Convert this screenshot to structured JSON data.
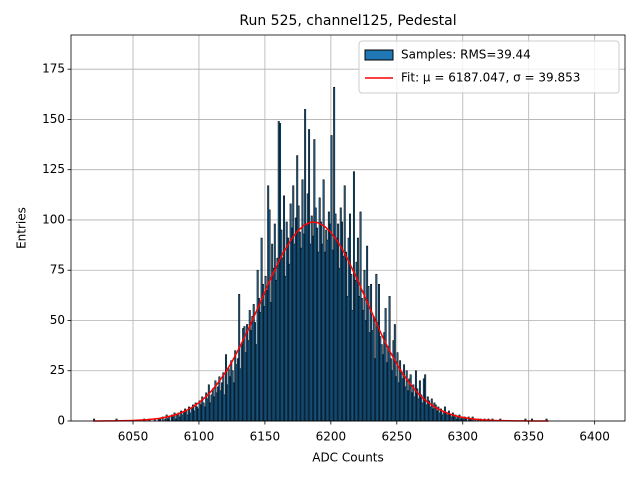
{
  "chart_data": {
    "type": "histogram",
    "title": "Run 525, channel125, Pedestal",
    "xlabel": "ADC Counts",
    "ylabel": "Entries",
    "xlim": [
      6003,
      6423
    ],
    "xticks": [
      6050,
      6100,
      6150,
      6200,
      6250,
      6300,
      6350,
      6400
    ],
    "ylim": [
      0,
      192
    ],
    "yticks": [
      0,
      25,
      50,
      75,
      100,
      125,
      150,
      175
    ],
    "grid": true,
    "legend": "upper right",
    "series": [
      {
        "name": "Samples: RMS=39.44",
        "type": "histogram",
        "color": "#1f77b4",
        "edgecolor": "#000000",
        "bins": [
          6020,
          6021,
          6022,
          6023,
          6024,
          6025,
          6026,
          6027,
          6028,
          6029,
          6030,
          6031,
          6032,
          6033,
          6034,
          6035,
          6036,
          6037,
          6038,
          6039,
          6040,
          6041,
          6042,
          6043,
          6044,
          6045,
          6046,
          6047,
          6048,
          6049,
          6050,
          6051,
          6052,
          6053,
          6054,
          6055,
          6056,
          6057,
          6058,
          6059,
          6060,
          6061,
          6062,
          6063,
          6064,
          6065,
          6066,
          6067,
          6068,
          6069,
          6070,
          6071,
          6072,
          6073,
          6074,
          6075,
          6076,
          6077,
          6078,
          6079,
          6080,
          6081,
          6082,
          6083,
          6084,
          6085,
          6086,
          6087,
          6088,
          6089,
          6090,
          6091,
          6092,
          6093,
          6094,
          6095,
          6096,
          6097,
          6098,
          6099,
          6100,
          6101,
          6102,
          6103,
          6104,
          6105,
          6106,
          6107,
          6108,
          6109,
          6110,
          6111,
          6112,
          6113,
          6114,
          6115,
          6116,
          6117,
          6118,
          6119,
          6120,
          6121,
          6122,
          6123,
          6124,
          6125,
          6126,
          6127,
          6128,
          6129,
          6130,
          6131,
          6132,
          6133,
          6134,
          6135,
          6136,
          6137,
          6138,
          6139,
          6140,
          6141,
          6142,
          6143,
          6144,
          6145,
          6146,
          6147,
          6148,
          6149,
          6150,
          6151,
          6152,
          6153,
          6154,
          6155,
          6156,
          6157,
          6158,
          6159,
          6160,
          6161,
          6162,
          6163,
          6164,
          6165,
          6166,
          6167,
          6168,
          6169,
          6170,
          6171,
          6172,
          6173,
          6174,
          6175,
          6176,
          6177,
          6178,
          6179,
          6180,
          6181,
          6182,
          6183,
          6184,
          6185,
          6186,
          6187,
          6188,
          6189,
          6190,
          6191,
          6192,
          6193,
          6194,
          6195,
          6196,
          6197,
          6198,
          6199,
          6200,
          6201,
          6202,
          6203,
          6204,
          6205,
          6206,
          6207,
          6208,
          6209,
          6210,
          6211,
          6212,
          6213,
          6214,
          6215,
          6216,
          6217,
          6218,
          6219,
          6220,
          6221,
          6222,
          6223,
          6224,
          6225,
          6226,
          6227,
          6228,
          6229,
          6230,
          6231,
          6232,
          6233,
          6234,
          6235,
          6236,
          6237,
          6238,
          6239,
          6240,
          6241,
          6242,
          6243,
          6244,
          6245,
          6246,
          6247,
          6248,
          6249,
          6250,
          6251,
          6252,
          6253,
          6254,
          6255,
          6256,
          6257,
          6258,
          6259,
          6260,
          6261,
          6262,
          6263,
          6264,
          6265,
          6266,
          6267,
          6268,
          6269,
          6270,
          6271,
          6272,
          6273,
          6274,
          6275,
          6276,
          6277,
          6278,
          6279,
          6280,
          6281,
          6282,
          6283,
          6284,
          6285,
          6286,
          6287,
          6288,
          6289,
          6290,
          6291,
          6292,
          6293,
          6294,
          6295,
          6296,
          6297,
          6298,
          6299,
          6300,
          6301,
          6302,
          6303,
          6304,
          6305,
          6306,
          6307,
          6308,
          6309,
          6310,
          6311,
          6312,
          6313,
          6314,
          6315,
          6316,
          6317,
          6318,
          6319,
          6320,
          6321,
          6322,
          6323,
          6324,
          6325,
          6326,
          6327,
          6328,
          6329,
          6330,
          6331,
          6332,
          6333,
          6334,
          6335,
          6336,
          6337,
          6338,
          6339,
          6340,
          6341,
          6342,
          6343,
          6344,
          6345,
          6346,
          6347,
          6348,
          6349,
          6350,
          6351,
          6352,
          6353,
          6354,
          6355,
          6356,
          6357,
          6358,
          6359,
          6360,
          6361,
          6362,
          6363,
          6364,
          6365
        ],
        "values": [
          1,
          0,
          0,
          0,
          0,
          0,
          0,
          0,
          0,
          0,
          0,
          0,
          0,
          0,
          0,
          0,
          0,
          1,
          0,
          0,
          0,
          0,
          0,
          0,
          0,
          0,
          0,
          0,
          0,
          0,
          0,
          0,
          0,
          0,
          0,
          0,
          0,
          0,
          1,
          0,
          0,
          0,
          1,
          0,
          0,
          0,
          1,
          0,
          0,
          1,
          1,
          0,
          2,
          0,
          1,
          3,
          1,
          2,
          0,
          3,
          2,
          4,
          1,
          3,
          4,
          2,
          5,
          3,
          4,
          6,
          5,
          3,
          7,
          4,
          6,
          8,
          5,
          9,
          7,
          6,
          10,
          8,
          12,
          9,
          7,
          14,
          11,
          18,
          9,
          13,
          16,
          12,
          20,
          14,
          17,
          22,
          15,
          19,
          24,
          13,
          33,
          18,
          26,
          22,
          30,
          25,
          19,
          35,
          28,
          31,
          63,
          26,
          38,
          46,
          47,
          34,
          48,
          40,
          55,
          45,
          52,
          58,
          49,
          38,
          75,
          61,
          54,
          91,
          68,
          57,
          72,
          65,
          117,
          105,
          59,
          88,
          76,
          98,
          70,
          81,
          149,
          148,
          95,
          81,
          112,
          72,
          99,
          91,
          78,
          108,
          96,
          117,
          88,
          101,
          132,
          107,
          94,
          86,
          120,
          93,
          155,
          98,
          113,
          145,
          88,
          102,
          92,
          140,
          106,
          96,
          84,
          111,
          99,
          88,
          120,
          84,
          95,
          90,
          104,
          98,
          142,
          85,
          166,
          103,
          91,
          98,
          76,
          106,
          99,
          82,
          117,
          84,
          62,
          91,
          103,
          73,
          55,
          124,
          70,
          79,
          91,
          62,
          104,
          61,
          55,
          75,
          50,
          87,
          67,
          44,
          68,
          45,
          52,
          31,
          73,
          49,
          68,
          42,
          38,
          33,
          44,
          56,
          29,
          37,
          62,
          31,
          25,
          40,
          48,
          22,
          34,
          19,
          30,
          24,
          21,
          28,
          17,
          25,
          15,
          21,
          23,
          14,
          18,
          12,
          25,
          16,
          11,
          20,
          13,
          9,
          21,
          23,
          8,
          12,
          10,
          7,
          11,
          6,
          9,
          8,
          5,
          7,
          4,
          6,
          3,
          5,
          7,
          4,
          3,
          5,
          3,
          2,
          4,
          2,
          3,
          1,
          2,
          3,
          1,
          2,
          1,
          2,
          1,
          0,
          2,
          1,
          1,
          2,
          0,
          1,
          0,
          1,
          0,
          1,
          0,
          0,
          1,
          0,
          0,
          1,
          0,
          0,
          1,
          0,
          0,
          0,
          0,
          0,
          1,
          0,
          0,
          0,
          0,
          0,
          0,
          0,
          0,
          0,
          0,
          0,
          0,
          0,
          0,
          0,
          0,
          0,
          0,
          1,
          0,
          0,
          0,
          0,
          1,
          0,
          0,
          0,
          0,
          0,
          0,
          0,
          0,
          0,
          0,
          1,
          0
        ]
      },
      {
        "name": "Fit: μ = 6187.047, σ = 39.853",
        "type": "line",
        "color": "#ff0000",
        "x": [
          6020,
          6025,
          6030,
          6035,
          6040,
          6045,
          6050,
          6055,
          6060,
          6065,
          6070,
          6075,
          6080,
          6085,
          6090,
          6095,
          6100,
          6105,
          6110,
          6115,
          6120,
          6125,
          6130,
          6135,
          6140,
          6145,
          6150,
          6155,
          6160,
          6165,
          6170,
          6175,
          6180,
          6185,
          6190,
          6195,
          6200,
          6205,
          6210,
          6215,
          6220,
          6225,
          6230,
          6235,
          6240,
          6245,
          6250,
          6255,
          6260,
          6265,
          6270,
          6275,
          6280,
          6285,
          6290,
          6295,
          6300,
          6305,
          6310,
          6315,
          6320,
          6325,
          6330,
          6335,
          6340,
          6345,
          6350,
          6355,
          6360,
          6365
        ],
        "values": [
          0.015,
          0.026,
          0.042,
          0.069,
          0.11,
          0.17,
          0.27,
          0.41,
          0.61,
          0.91,
          1.33,
          1.91,
          2.69,
          3.73,
          5.11,
          6.84,
          9.13,
          11.9,
          15.3,
          19.4,
          24.1,
          29.4,
          35.6,
          42.2,
          49.4,
          56.8,
          64.3,
          71.6,
          78.7,
          85.0,
          90.4,
          94.6,
          97.5,
          98.9,
          98.7,
          97.0,
          93.9,
          89.4,
          83.8,
          77.4,
          70.4,
          63.0,
          55.7,
          47.9,
          40.8,
          34.3,
          28.4,
          23.1,
          18.5,
          14.6,
          11.3,
          8.66,
          6.49,
          4.81,
          3.5,
          2.5,
          1.78,
          1.24,
          0.85,
          0.57,
          0.38,
          0.25,
          0.16,
          0.1,
          0.062,
          0.038,
          0.023,
          0.014,
          0.008,
          0.005
        ]
      }
    ]
  }
}
